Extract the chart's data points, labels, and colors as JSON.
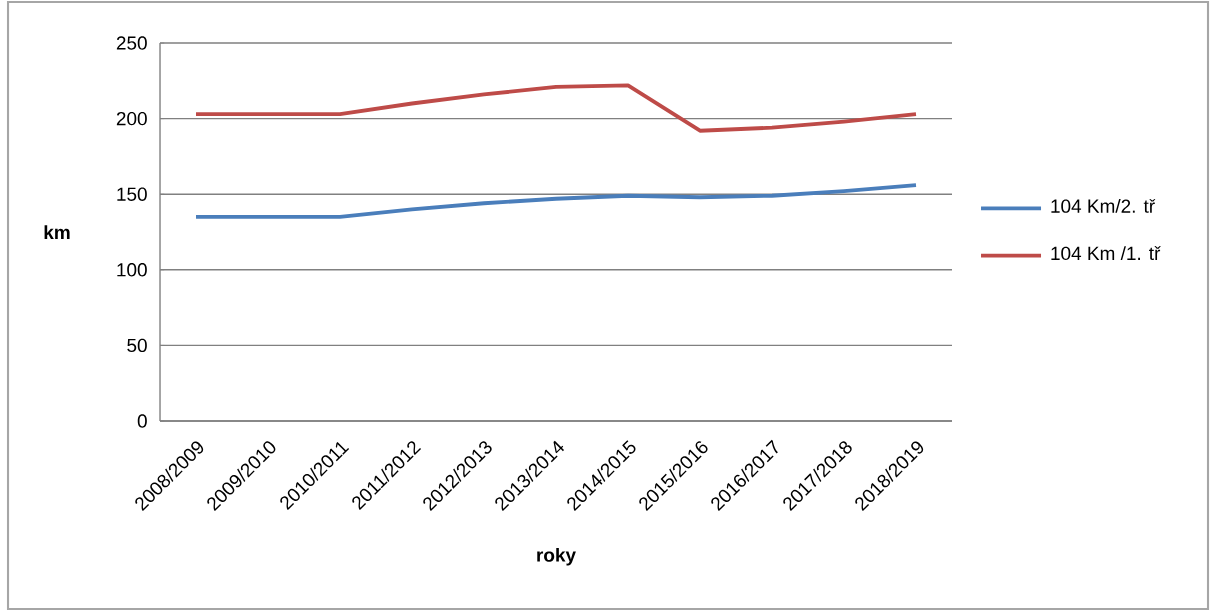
{
  "chart_data": {
    "type": "line",
    "xlabel": "roky",
    "ylabel": "km",
    "categories": [
      "2008/2009",
      "2009/2010",
      "2010/2011",
      "2011/2012",
      "2012/2013",
      "2013/2014",
      "2014/2015",
      "2015/2016",
      "2016/2017",
      "2017/2018",
      "2018/2019"
    ],
    "series": [
      {
        "name": "104 Km/2. tř",
        "color": "#4a7ebb",
        "values": [
          135,
          135,
          135,
          140,
          144,
          147,
          149,
          148,
          149,
          152,
          156
        ]
      },
      {
        "name": "104 Km /1. tř",
        "color": "#be4b48",
        "values": [
          203,
          203,
          203,
          210,
          216,
          221,
          222,
          192,
          194,
          198,
          203
        ]
      }
    ],
    "ylim": [
      0,
      250
    ],
    "yticks": [
      0,
      50,
      100,
      150,
      200,
      250
    ],
    "grid": "y",
    "legend": "right",
    "marker": "none",
    "line_style": "solid"
  }
}
